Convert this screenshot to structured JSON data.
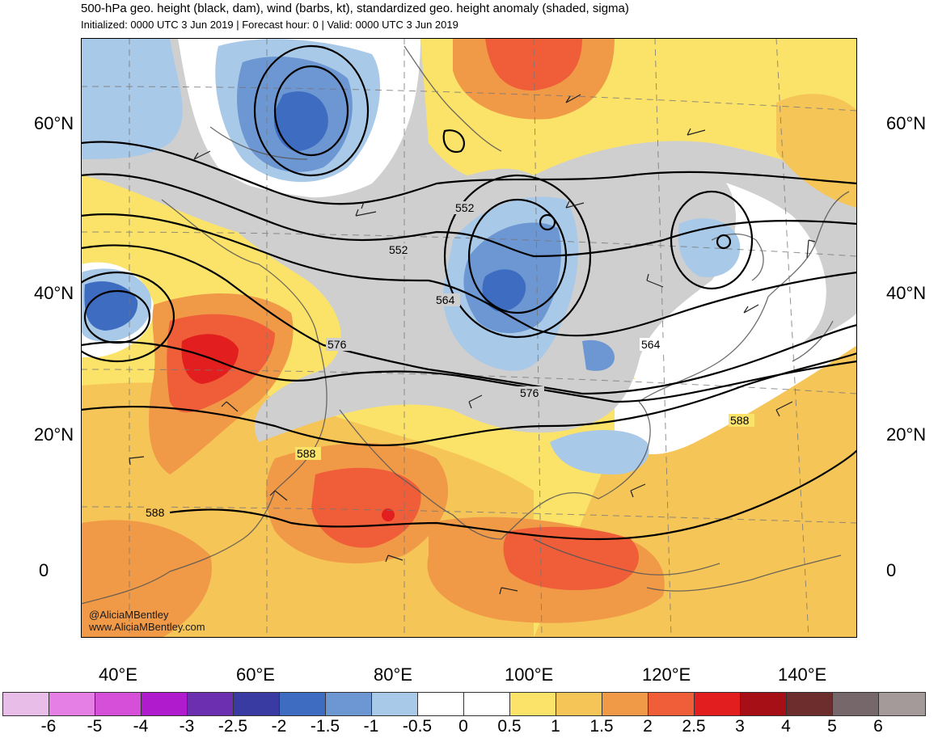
{
  "header": {
    "title": "500-hPa geo. height (black, dam), wind (barbs, kt), standardized geo. height anomaly (shaded, sigma)",
    "subtitle": "Initialized: 0000 UTC 3 Jun 2019 | Forecast hour: 0 | Valid: 0000 UTC 3 Jun 2019"
  },
  "axes": {
    "lat_left": [
      "60°N",
      "40°N",
      "20°N",
      "0"
    ],
    "lat_right": [
      "60°N",
      "40°N",
      "20°N",
      "0"
    ],
    "lon": [
      "40°E",
      "60°E",
      "80°E",
      "100°E",
      "120°E",
      "140°E"
    ]
  },
  "contour_labels": [
    "552",
    "552",
    "564",
    "564",
    "576",
    "576",
    "588",
    "588",
    "588"
  ],
  "credit": {
    "handle": "@AliciaMBentley",
    "site": "www.AliciaMBentley.com"
  },
  "colorbar": {
    "labels": [
      "-6",
      "-5",
      "-4",
      "-3",
      "-2.5",
      "-2",
      "-1.5",
      "-1",
      "-0.5",
      "0",
      "0.5",
      "1",
      "1.5",
      "2",
      "2.5",
      "3",
      "4",
      "5",
      "6"
    ],
    "colors": [
      "#e8bde8",
      "#e57fe5",
      "#d54fd8",
      "#b01ccd",
      "#6b2faf",
      "#3a3aa3",
      "#3d6cc0",
      "#6d97d2",
      "#a9c9e8",
      "#ffffff",
      "#ffffff",
      "#fbe36a",
      "#f6c558",
      "#f09a48",
      "#ef5e38",
      "#e21e1e",
      "#a50f15",
      "#6e2d2d",
      "#76686a",
      "#a59a9a"
    ]
  }
}
